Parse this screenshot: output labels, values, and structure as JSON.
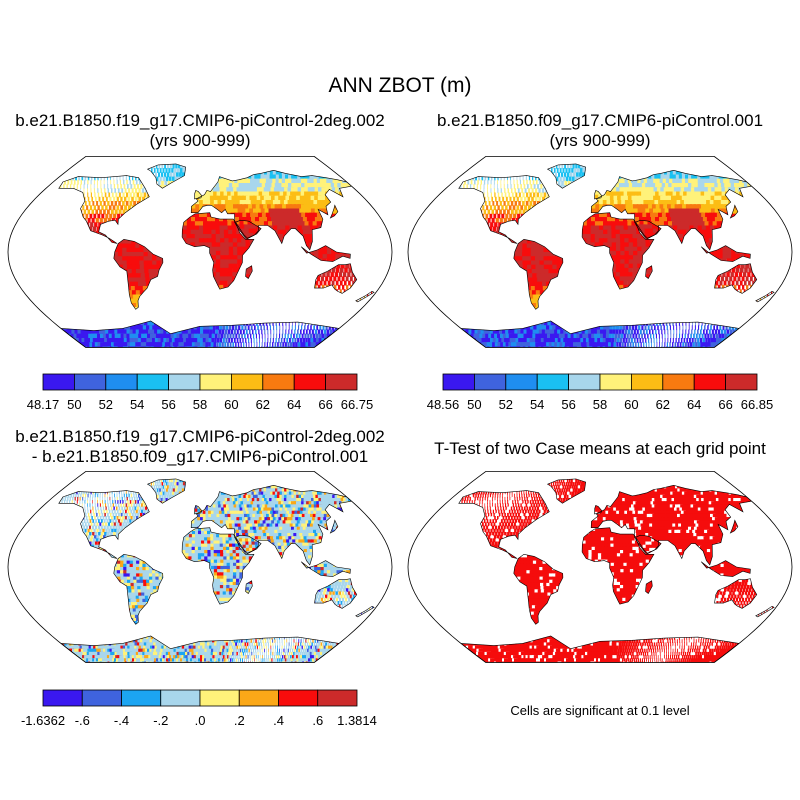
{
  "figure": {
    "title": "ANN ZBOT (m)",
    "panels": [
      {
        "id": "case1",
        "title_line1": "b.e21.B1850.f19_g17.CMIP6-piControl-2deg.002",
        "title_line2": "(yrs 900-999)"
      },
      {
        "id": "case2",
        "title_line1": "b.e21.B1850.f09_g17.CMIP6-piControl.001",
        "title_line2": "(yrs 900-999)"
      },
      {
        "id": "diff",
        "title_line1": "b.e21.B1850.f19_g17.CMIP6-piControl-2deg.002",
        "title_line2": "- b.e21.B1850.f09_g17.CMIP6-piControl.001"
      },
      {
        "id": "ttest",
        "title_line1": "T-Test of two Case means at each grid point",
        "title_line2": ""
      }
    ],
    "significance_note": "Cells are significant at 0.1 level"
  },
  "colors": {
    "abs_scale": [
      "#3a18f0",
      "#3f63de",
      "#1f8ef0",
      "#1ac0f2",
      "#a8d6ec",
      "#fff27a",
      "#fcbd15",
      "#f87a10",
      "#f80c0c",
      "#cc2a2a"
    ],
    "diff_scale": [
      "#3a18f0",
      "#3f63de",
      "#1ca5f2",
      "#a8d6ec",
      "#fff27a",
      "#fba818",
      "#f80c0c",
      "#cc2a2a"
    ],
    "significant": "#f50c0c",
    "land_outline": "#000000"
  },
  "chart_data": [
    {
      "type": "heatmap",
      "projection": "Robinson",
      "title": "b.e21.B1850.f19_g17.CMIP6-piControl-2deg.002 (yrs 900-999)",
      "variable": "ZBOT",
      "units": "m",
      "colorbar_labels": [
        "48.17",
        "50",
        "52",
        "54",
        "56",
        "58",
        "60",
        "62",
        "64",
        "66",
        "66.75"
      ],
      "colorbar_min": 48.17,
      "colorbar_max": 66.75
    },
    {
      "type": "heatmap",
      "projection": "Robinson",
      "title": "b.e21.B1850.f09_g17.CMIP6-piControl.001 (yrs 900-999)",
      "variable": "ZBOT",
      "units": "m",
      "colorbar_labels": [
        "48.56",
        "50",
        "52",
        "54",
        "56",
        "58",
        "60",
        "62",
        "64",
        "66",
        "66.85"
      ],
      "colorbar_min": 48.56,
      "colorbar_max": 66.85
    },
    {
      "type": "heatmap",
      "projection": "Robinson",
      "title": "b.e21.B1850.f19_g17.CMIP6-piControl-2deg.002 - b.e21.B1850.f09_g17.CMIP6-piControl.001",
      "variable": "ZBOT difference",
      "units": "m",
      "colorbar_labels": [
        "-1.6362",
        "-.6",
        "-.4",
        "-.2",
        ".0",
        ".2",
        ".4",
        ".6",
        "1.3814"
      ],
      "colorbar_min": -1.6362,
      "colorbar_max": 1.3814
    },
    {
      "type": "heatmap",
      "projection": "Robinson",
      "title": "T-Test of two Case means at each grid point",
      "variable": "significance",
      "note": "Cells are significant at 0.1 level"
    }
  ]
}
